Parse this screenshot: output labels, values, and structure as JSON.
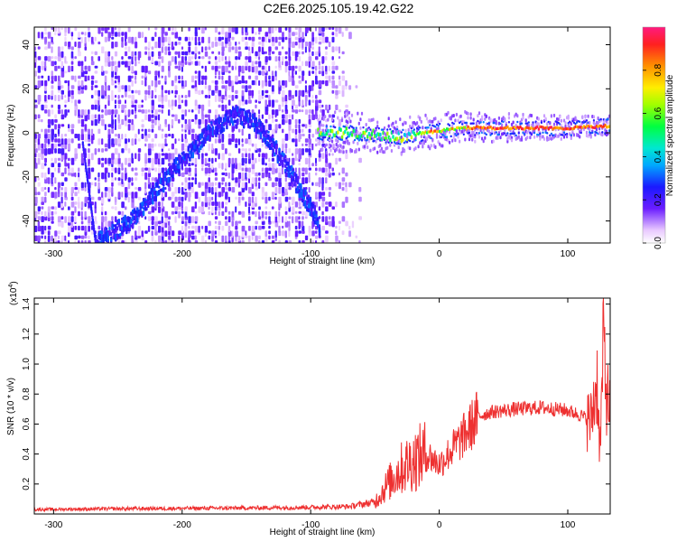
{
  "title": "C2E6.2025.105.19.42.G22",
  "chart_data": [
    {
      "type": "heatmap",
      "title": "C2E6.2025.105.19.42.G22",
      "xlabel": "Height of straight line (km)",
      "ylabel": "Frequency (Hz)",
      "xlim": [
        -315,
        133
      ],
      "ylim": [
        -50,
        48
      ],
      "xticks": [
        "-300",
        "-200",
        "-100",
        "0",
        "100"
      ],
      "xtick_values": [
        -300,
        -200,
        -100,
        0,
        100
      ],
      "yticks": [
        "-40",
        "-20",
        "0",
        "20",
        "40"
      ],
      "ytick_values": [
        -40,
        -20,
        0,
        20,
        40
      ],
      "colorbar": {
        "label": "Normalized spectral amplitude",
        "ticks": [
          "0.0",
          "0.2",
          "0.4",
          "0.6",
          "0.8"
        ],
        "tick_values": [
          0.0,
          0.2,
          0.4,
          0.6,
          0.8
        ],
        "range": [
          0,
          1
        ]
      },
      "features": {
        "noise_region_x": [
          -315,
          -62
        ],
        "arc_path": [
          [
            -268,
            -50
          ],
          [
            -240,
            -40
          ],
          [
            -205,
            -15
          ],
          [
            -180,
            0
          ],
          [
            -160,
            8
          ],
          [
            -145,
            5
          ],
          [
            -125,
            -10
          ],
          [
            -100,
            -35
          ],
          [
            -93,
            -42
          ]
        ],
        "faint_streak": [
          [
            -278,
            -5
          ],
          [
            -268,
            -50
          ]
        ],
        "main_signal_path": [
          [
            -95,
            0
          ],
          [
            -70,
            0
          ],
          [
            -45,
            -1
          ],
          [
            -30,
            -2
          ],
          [
            -10,
            0
          ],
          [
            0,
            1
          ],
          [
            20,
            2
          ],
          [
            60,
            2
          ],
          [
            100,
            2
          ],
          [
            133,
            3
          ]
        ]
      }
    },
    {
      "type": "line",
      "xlabel": "Height of straight line (km)",
      "ylabel": "SNR (10 * v/v)",
      "multiplier": "(x10",
      "multiplier_exp": "4",
      "xlim": [
        -315,
        133
      ],
      "ylim": [
        0,
        14400
      ],
      "xticks": [
        "-300",
        "-200",
        "-100",
        "0",
        "100"
      ],
      "xtick_values": [
        -300,
        -200,
        -100,
        0,
        100
      ],
      "yticks": [
        "0.2",
        "0.4",
        "0.6",
        "0.8",
        "1.0",
        "1.2",
        "1.4"
      ],
      "ytick_values": [
        2000,
        4000,
        6000,
        8000,
        10000,
        12000,
        14000
      ],
      "color": "#ee3030",
      "x": [
        -315,
        -250,
        -150,
        -100,
        -70,
        -50,
        -40,
        -30,
        -20,
        -10,
        0,
        10,
        20,
        30,
        40,
        60,
        80,
        100,
        110,
        118,
        123,
        125,
        128,
        130,
        133
      ],
      "y": [
        300,
        350,
        400,
        450,
        500,
        800,
        2000,
        3000,
        3600,
        4000,
        3300,
        4300,
        5300,
        6500,
        6800,
        7000,
        7100,
        6900,
        6600,
        6200,
        9000,
        4000,
        12000,
        8000,
        7000
      ]
    }
  ]
}
